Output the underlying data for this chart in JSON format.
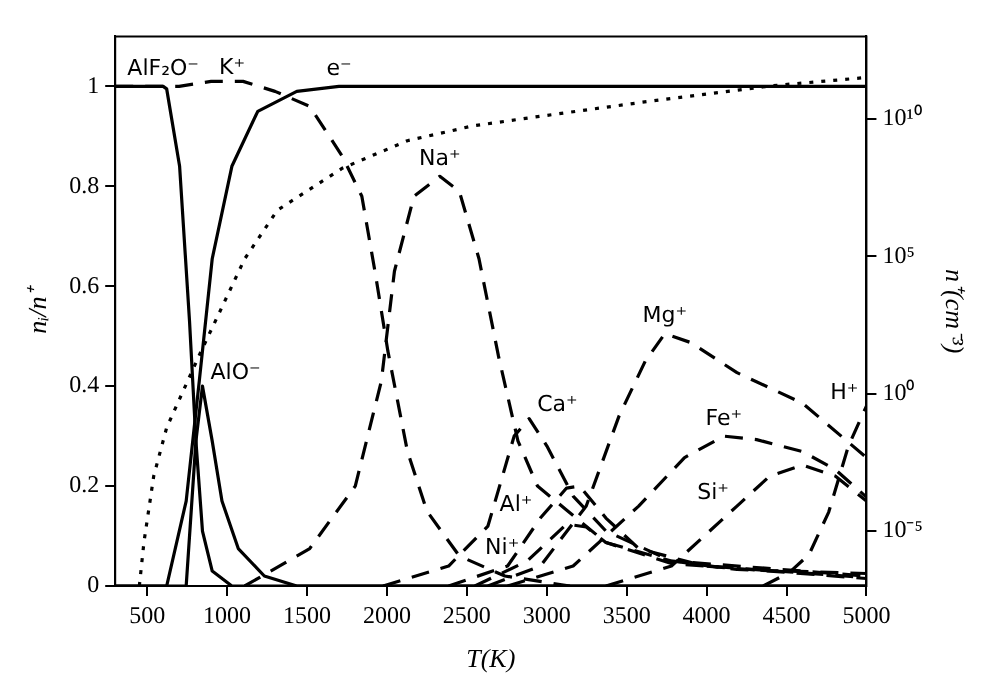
{
  "chart_data": {
    "type": "line",
    "xlabel": "T(K)",
    "ylabel": "nᵢ/n⁺",
    "y2label": "n⁺(cm⁻³)",
    "xlim": [
      300,
      5000
    ],
    "xticks": [
      500,
      1000,
      1500,
      2000,
      2500,
      3000,
      3500,
      4000,
      4500,
      5000
    ],
    "ylim": [
      0,
      1.1
    ],
    "yticks": [
      0,
      0.2,
      0.4,
      0.6,
      0.8,
      1
    ],
    "y2lim": [
      1e-07,
      10000000000000.0
    ],
    "y2ticks": [
      {
        "value": 1e-05,
        "label": "10⁻⁵"
      },
      {
        "value": 1,
        "label": "10⁰"
      },
      {
        "value": 100000,
        "label": "10⁵"
      },
      {
        "value": 10000000000,
        "label": "10¹⁰"
      }
    ],
    "log": "y2",
    "grid": false,
    "legend": false,
    "marker": "none",
    "series": [
      {
        "name": "AlF₂O⁻",
        "color": "#000000",
        "line_style": "solid",
        "x": [
          300,
          600,
          622,
          703,
          765,
          805,
          846,
          907,
          1030,
          5000
        ],
        "values": [
          1,
          1,
          0.995,
          0.84,
          0.53,
          0.29,
          0.11,
          0.03,
          0,
          0
        ]
      },
      {
        "name": "K⁺",
        "color": "#000000",
        "line_style": "dashed",
        "x": [
          300,
          700,
          900,
          1100,
          1300,
          1517,
          1721,
          1843,
          1925,
          2006,
          2128,
          2250,
          2453,
          2738,
          3145
        ],
        "values": [
          1,
          1,
          1.01,
          1.01,
          0.99,
          0.96,
          0.86,
          0.78,
          0.63,
          0.47,
          0.27,
          0.15,
          0.06,
          0.02,
          0
        ]
      },
      {
        "name": "e⁻",
        "color": "#000000",
        "line_style": "solid",
        "x": [
          300,
          622,
          744,
          826,
          907,
          1030,
          1192,
          1436,
          1700,
          5000
        ],
        "values": [
          0,
          0,
          0.17,
          0.41,
          0.655,
          0.84,
          0.95,
          0.99,
          1,
          1
        ]
      },
      {
        "name": "AlO⁻",
        "color": "#000000",
        "line_style": "solid",
        "x": [
          300,
          744,
          805,
          846,
          907,
          968,
          1070,
          1233,
          1436,
          5000
        ],
        "values": [
          0,
          0,
          0.29,
          0.4,
          0.29,
          0.17,
          0.075,
          0.02,
          0,
          0
        ]
      },
      {
        "name": "Na⁺",
        "color": "#000000",
        "line_style": "dashed",
        "x": [
          1110,
          1517,
          1802,
          1965,
          2047,
          2169,
          2331,
          2453,
          2576,
          2698,
          2820,
          2942,
          3370,
          3780,
          5000
        ],
        "values": [
          0,
          0.075,
          0.2,
          0.41,
          0.63,
          0.78,
          0.82,
          0.79,
          0.655,
          0.46,
          0.29,
          0.2,
          0.087,
          0.05,
          0.02
        ]
      },
      {
        "name": "Ca⁺",
        "color": "#000000",
        "line_style": "dashed",
        "x": [
          1976,
          2386,
          2632,
          2796,
          2890,
          3001,
          3165,
          3370,
          3780,
          4190,
          5000
        ],
        "values": [
          0,
          0.04,
          0.12,
          0.3,
          0.335,
          0.28,
          0.18,
          0.11,
          0.05,
          0.033,
          0.025
        ]
      },
      {
        "name": "Al⁺",
        "color": "#000000",
        "line_style": "dashed",
        "x": [
          2386,
          2755,
          2960,
          3124,
          3206,
          3370,
          3575,
          3985,
          5000
        ],
        "values": [
          0,
          0.04,
          0.136,
          0.196,
          0.2,
          0.136,
          0.075,
          0.04,
          0.015
        ]
      },
      {
        "name": "Ni⁺",
        "color": "#000000",
        "line_style": "dashed",
        "x": [
          2550,
          2878,
          3124,
          3247,
          3370,
          3780,
          5000
        ],
        "values": [
          0,
          0.05,
          0.124,
          0.118,
          0.087,
          0.045,
          0.017
        ]
      },
      {
        "name": "Mg⁺",
        "color": "#000000",
        "line_style": "dashed",
        "x": [
          2632,
          2960,
          3247,
          3452,
          3616,
          3739,
          3903,
          4190,
          4600,
          5000
        ],
        "values": [
          0,
          0.04,
          0.16,
          0.34,
          0.45,
          0.505,
          0.487,
          0.427,
          0.366,
          0.257
        ]
      },
      {
        "name": "Fe⁺",
        "color": "#000000",
        "line_style": "dashed",
        "x": [
          2755,
          3165,
          3575,
          3862,
          4108,
          4313,
          4600,
          4805,
          5000
        ],
        "values": [
          0,
          0.04,
          0.16,
          0.257,
          0.3,
          0.293,
          0.269,
          0.233,
          0.178
        ]
      },
      {
        "name": "Si⁺",
        "color": "#000000",
        "line_style": "dashed",
        "x": [
          3370,
          3780,
          4190,
          4395,
          4600,
          4805,
          5000
        ],
        "values": [
          0,
          0.04,
          0.16,
          0.22,
          0.242,
          0.22,
          0.17
        ]
      },
      {
        "name": "H⁺",
        "color": "#000000",
        "line_style": "dashed",
        "x": [
          4354,
          4518,
          4641,
          4764,
          4887,
          5000
        ],
        "values": [
          0,
          0.027,
          0.063,
          0.148,
          0.28,
          0.36
        ]
      },
      {
        "color": "#000000",
        "line_style": "dotted",
        "axis": "y2",
        "x": [
          451,
          480,
          541,
          622,
          826,
          1110,
          1314,
          1721,
          2128,
          2535,
          2942,
          3595,
          4408,
          5000
        ],
        "values": [
          1e-07,
          4e-06,
          0.001,
          0.058,
          25,
          80000,
          4700000,
          160000000,
          1600000000,
          5500000000,
          12000000000,
          40000000000,
          160000000000,
          320000000000
        ]
      }
    ]
  }
}
